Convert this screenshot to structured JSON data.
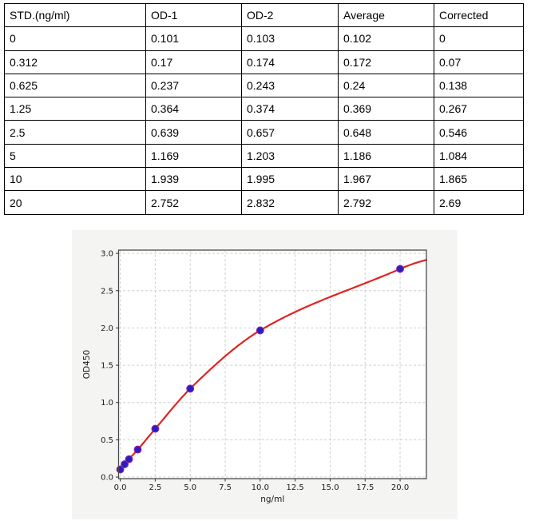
{
  "table": {
    "columns": [
      "STD.(ng/ml)",
      "OD-1",
      "OD-2",
      "Average",
      "Corrected"
    ],
    "rows": [
      [
        "0",
        "0.101",
        "0.103",
        "0.102",
        "0"
      ],
      [
        "0.312",
        "0.17",
        "0.174",
        "0.172",
        "0.07"
      ],
      [
        "0.625",
        "0.237",
        "0.243",
        "0.24",
        "0.138"
      ],
      [
        "1.25",
        "0.364",
        "0.374",
        "0.369",
        "0.267"
      ],
      [
        "2.5",
        "0.639",
        "0.657",
        "0.648",
        "0.546"
      ],
      [
        "5",
        "1.169",
        "1.203",
        "1.186",
        "1.084"
      ],
      [
        "10",
        "1.939",
        "1.995",
        "1.967",
        "1.865"
      ],
      [
        "20",
        "2.752",
        "2.832",
        "2.792",
        "2.69"
      ]
    ]
  },
  "chart_data": {
    "type": "scatter",
    "title": "",
    "xlabel": "ng/ml",
    "ylabel": "OD450",
    "series": [
      {
        "name": "standard-points",
        "type": "scatter",
        "x": [
          0,
          0.312,
          0.625,
          1.25,
          2.5,
          5,
          10,
          20
        ],
        "y": [
          0.102,
          0.172,
          0.24,
          0.369,
          0.648,
          1.186,
          1.967,
          2.792
        ]
      },
      {
        "name": "fit-curve",
        "type": "line",
        "description": "smooth fit curve through the standard points, ending near (21.9, 2.91)"
      }
    ],
    "xticks": [
      0.0,
      2.5,
      5.0,
      7.5,
      10.0,
      12.5,
      15.0,
      17.5,
      20.0
    ],
    "yticks": [
      0.0,
      0.5,
      1.0,
      1.5,
      2.0,
      2.5,
      3.0
    ],
    "xlim": [
      -0.12,
      21.88
    ],
    "ylim": [
      -0.021,
      3.044
    ],
    "grid": true,
    "grid_style": "dashed",
    "legend": "none",
    "colors": {
      "curve": "#e02420",
      "marker_fill": "#2a1bc2",
      "marker_edge": "#7e22aa",
      "figure_bg": "#f4f4f2",
      "plot_bg": "#ffffff",
      "grid": "#cdcdcd",
      "spine": "#4a4a4a",
      "tick": "#333333",
      "text": "#1a1a1a"
    }
  }
}
